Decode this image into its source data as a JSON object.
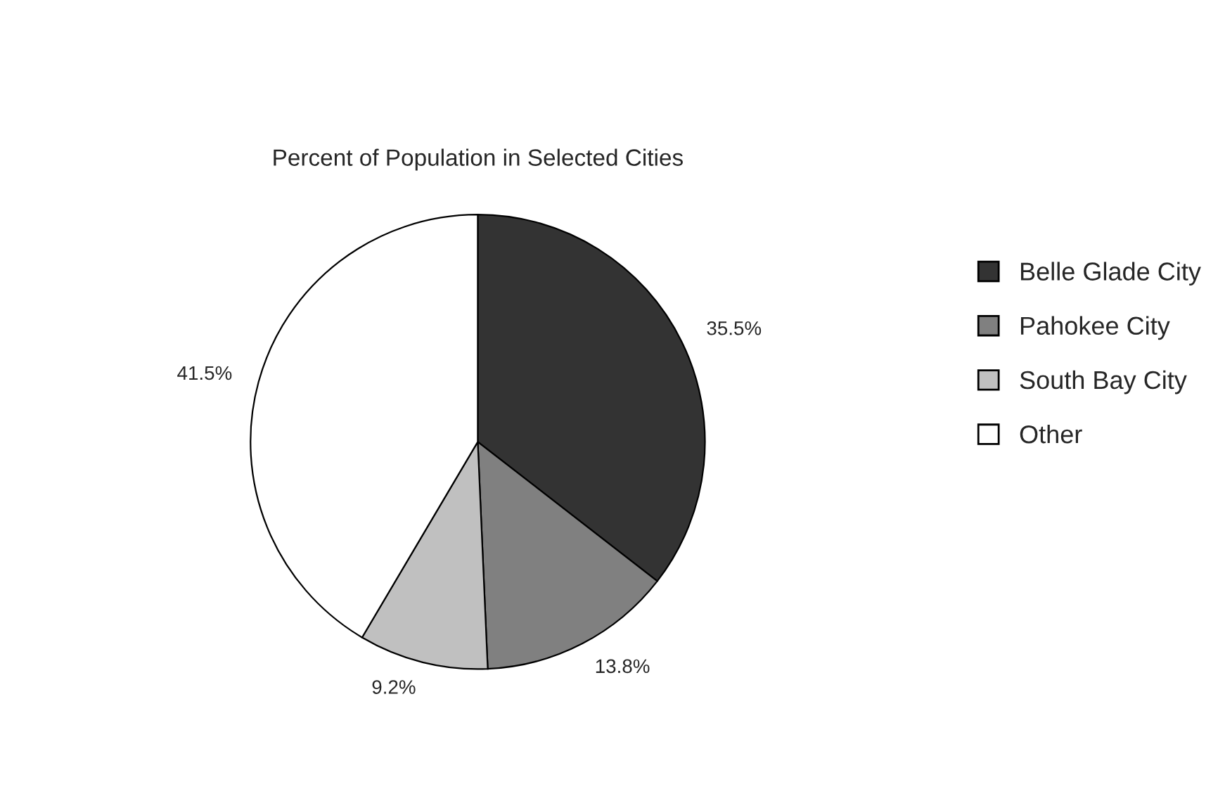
{
  "chart_data": {
    "type": "pie",
    "title": "Percent of Population in Selected Cities",
    "categories": [
      "Belle Glade City",
      "Pahokee City",
      "South Bay City",
      "Other"
    ],
    "values": [
      35.5,
      13.8,
      9.2,
      41.5
    ],
    "colors": [
      "#333333",
      "#808080",
      "#c0c0c0",
      "#ffffff"
    ],
    "value_labels": [
      "35.5%",
      "13.8%",
      "9.2%",
      "41.5%"
    ],
    "legend": "right"
  }
}
